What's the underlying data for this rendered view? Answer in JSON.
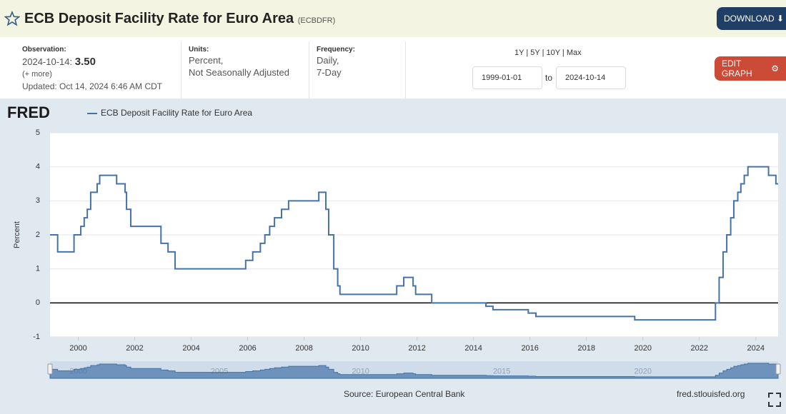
{
  "header": {
    "title": "ECB Deposit Facility Rate for Euro Area",
    "series_id": "(ECBDFR)",
    "download": "DOWNLOAD"
  },
  "info": {
    "observation_label": "Observation:",
    "observation_date": "2024-10-14:",
    "observation_value": "3.50",
    "more": "(+ more)",
    "updated_label": "Updated:",
    "updated": "Oct 14, 2024 6:46 AM CDT",
    "units_label": "Units:",
    "units_1": "Percent,",
    "units_2": "Not Seasonally Adjusted",
    "frequency_label": "Frequency:",
    "frequency_1": "Daily,",
    "frequency_2": "7-Day",
    "ranges": [
      "1Y",
      "5Y",
      "10Y",
      "Max"
    ],
    "start": "1999-01-01",
    "to": "to",
    "end": "2024-10-14",
    "edit": "EDIT GRAPH"
  },
  "logo": "FRED",
  "footer": {
    "source": "Source: European Central Bank",
    "site": "fred.stlouisfed.org"
  },
  "chart_data": {
    "type": "line",
    "step": true,
    "y_label": "Percent",
    "xlim": [
      1999,
      2024.79
    ],
    "xticks": [
      2000,
      2002,
      2004,
      2006,
      2008,
      2010,
      2012,
      2014,
      2016,
      2018,
      2020,
      2022,
      2024
    ],
    "ylim": [
      -1,
      5
    ],
    "yticks": [
      -1,
      0,
      1,
      2,
      3,
      4,
      5
    ],
    "grid": true,
    "navigator_xticks": [
      2000,
      2005,
      2010,
      2015,
      2020
    ],
    "x": [
      1999.0,
      1999.27,
      1999.85,
      2000.09,
      2000.21,
      2000.32,
      2000.44,
      2000.67,
      2000.76,
      2001.36,
      2001.66,
      2001.71,
      2001.86,
      2002.93,
      2003.18,
      2003.43,
      2005.93,
      2006.18,
      2006.45,
      2006.61,
      2006.78,
      2006.95,
      2007.2,
      2007.45,
      2008.52,
      2008.77,
      2008.87,
      2009.05,
      2009.19,
      2009.27,
      2011.28,
      2011.53,
      2011.86,
      2011.95,
      2012.52,
      2014.44,
      2014.69,
      2015.94,
      2016.21,
      2019.71,
      2022.57,
      2022.7,
      2022.84,
      2022.97,
      2023.11,
      2023.22,
      2023.36,
      2023.47,
      2023.59,
      2023.72,
      2024.45,
      2024.71,
      2024.79
    ],
    "series": [
      {
        "name": "ECB Deposit Facility Rate for Euro Area",
        "color": "#4572a7",
        "values": [
          2,
          1.5,
          2,
          2.25,
          2.5,
          2.75,
          3.25,
          3.5,
          3.75,
          3.5,
          3.25,
          2.75,
          2.25,
          1.75,
          1.5,
          1,
          1.25,
          1.5,
          1.75,
          2,
          2.25,
          2.5,
          2.75,
          3,
          3.25,
          2.75,
          2,
          1,
          0.5,
          0.25,
          0.5,
          0.75,
          0.5,
          0.25,
          0,
          -0.1,
          -0.2,
          -0.3,
          -0.4,
          -0.5,
          0,
          0.75,
          1.5,
          2,
          2.5,
          3,
          3.25,
          3.5,
          3.75,
          4,
          3.75,
          3.5,
          3.5
        ]
      }
    ]
  }
}
